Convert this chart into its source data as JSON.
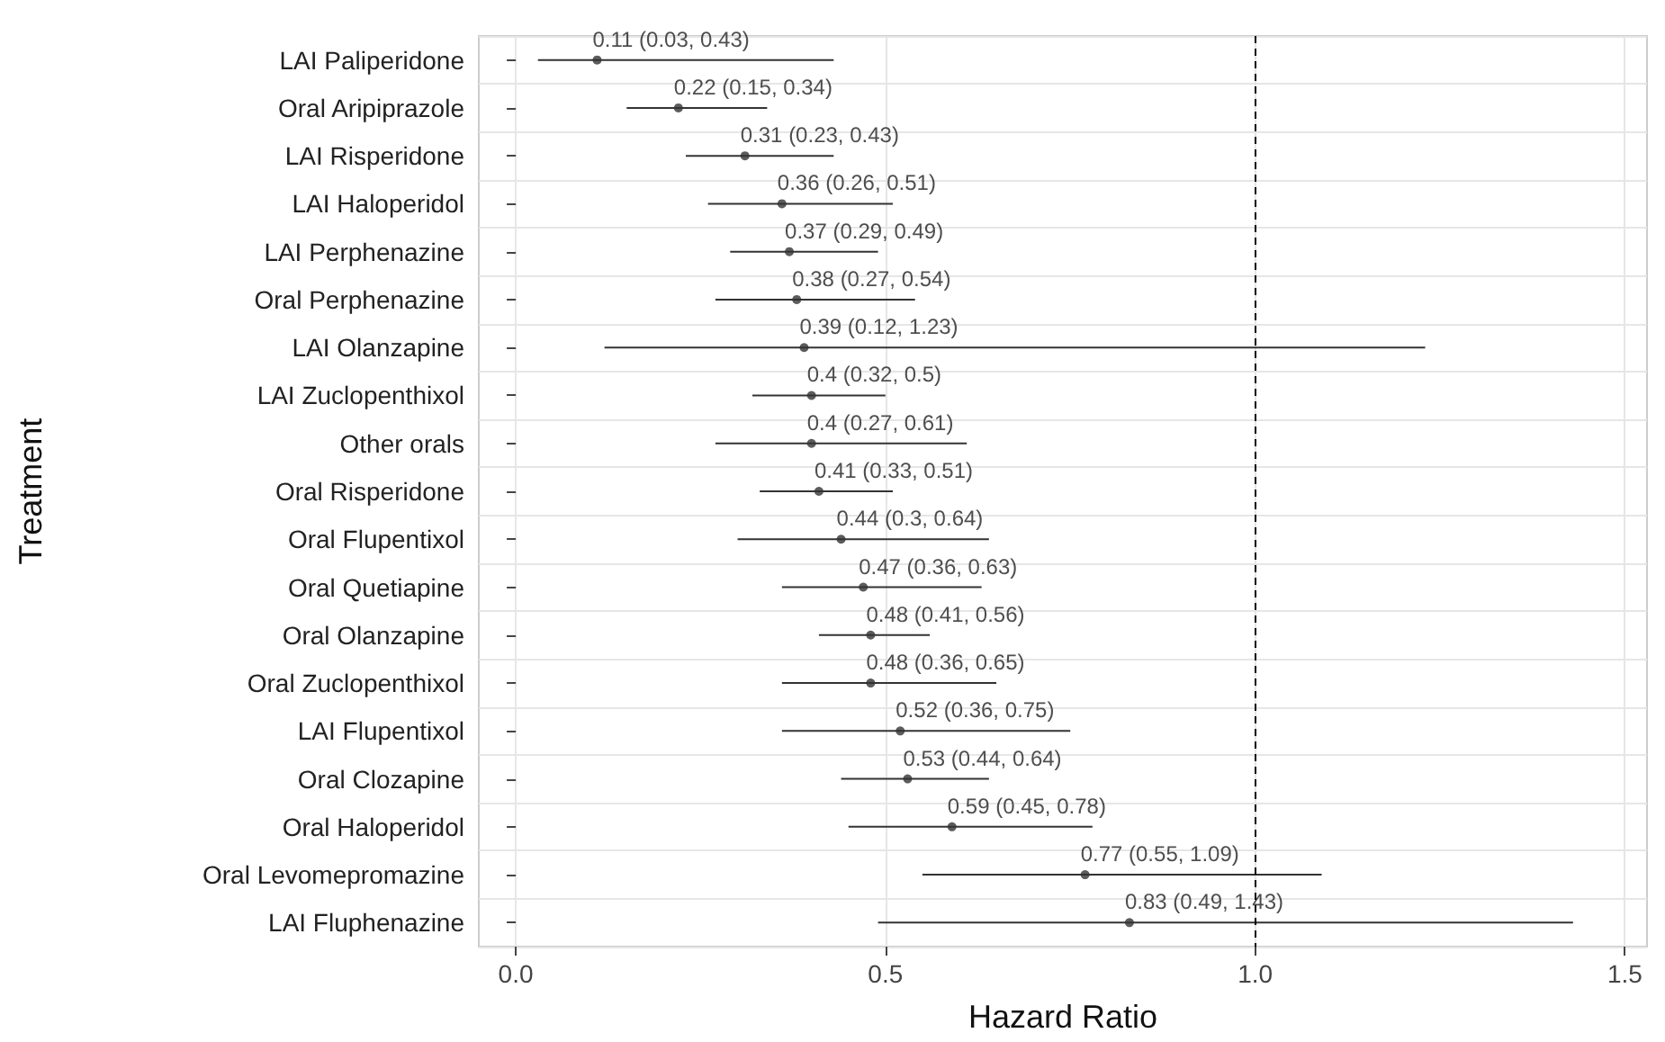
{
  "chart_data": {
    "type": "scatter",
    "orientation": "horizontal",
    "xlabel": "Hazard Ratio",
    "ylabel": "Treatment",
    "categories": [
      "LAI Paliperidone",
      "Oral Aripiprazole",
      "LAI Risperidone",
      "LAI Haloperidol",
      "LAI Perphenazine",
      "Oral Perphenazine",
      "LAI Olanzapine",
      "LAI Zuclopenthixol",
      "Other orals",
      "Oral Risperidone",
      "Oral Flupentixol",
      "Oral Quetiapine",
      "Oral Olanzapine",
      "Oral Zuclopenthixol",
      "LAI Flupentixol",
      "Oral Clozapine",
      "Oral Haloperidol",
      "Oral Levomepromazine",
      "LAI Fluphenazine"
    ],
    "values": [
      0.11,
      0.22,
      0.31,
      0.36,
      0.37,
      0.38,
      0.39,
      0.4,
      0.4,
      0.41,
      0.44,
      0.47,
      0.48,
      0.48,
      0.52,
      0.53,
      0.59,
      0.77,
      0.83
    ],
    "errors": [
      [
        0.03,
        0.43
      ],
      [
        0.15,
        0.34
      ],
      [
        0.23,
        0.43
      ],
      [
        0.26,
        0.51
      ],
      [
        0.29,
        0.49
      ],
      [
        0.27,
        0.54
      ],
      [
        0.12,
        1.23
      ],
      [
        0.32,
        0.5
      ],
      [
        0.27,
        0.61
      ],
      [
        0.33,
        0.51
      ],
      [
        0.3,
        0.64
      ],
      [
        0.36,
        0.63
      ],
      [
        0.41,
        0.56
      ],
      [
        0.36,
        0.65
      ],
      [
        0.36,
        0.75
      ],
      [
        0.44,
        0.64
      ],
      [
        0.45,
        0.78
      ],
      [
        0.55,
        1.09
      ],
      [
        0.49,
        1.43
      ]
    ],
    "value_labels": [
      "0.11 (0.03, 0.43)",
      "0.22 (0.15, 0.34)",
      "0.31 (0.23, 0.43)",
      "0.36 (0.26, 0.51)",
      "0.37 (0.29, 0.49)",
      "0.38 (0.27, 0.54)",
      "0.39 (0.12, 1.23)",
      "0.4 (0.32, 0.5)",
      "0.4 (0.27, 0.61)",
      "0.41 (0.33, 0.51)",
      "0.44 (0.3, 0.64)",
      "0.47 (0.36, 0.63)",
      "0.48 (0.41, 0.56)",
      "0.48 (0.36, 0.65)",
      "0.52 (0.36, 0.75)",
      "0.53 (0.44, 0.64)",
      "0.59 (0.45, 0.78)",
      "0.77 (0.55, 1.09)",
      "0.83 (0.49, 1.43)"
    ],
    "color": "#333333",
    "xlim": [
      -0.05,
      1.53
    ],
    "xticks": [
      {
        "value": 0,
        "label": "0.0"
      },
      {
        "value": 0.5,
        "label": "0.5"
      },
      {
        "value": 1,
        "label": "1.0"
      },
      {
        "value": 1.5,
        "label": "1.5"
      }
    ],
    "ref_lines": [
      {
        "axis": "x",
        "value": 1,
        "line_style": "dashed",
        "color": "#000000"
      }
    ],
    "grid": true,
    "marker": "circle"
  }
}
